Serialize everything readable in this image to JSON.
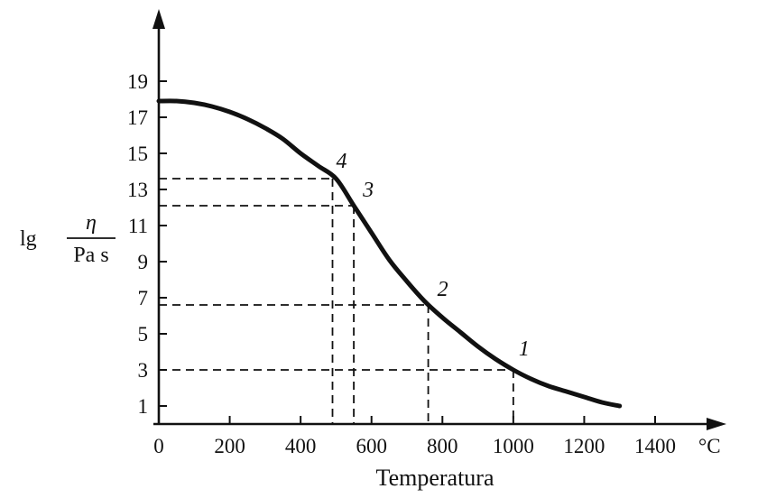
{
  "chart_data": {
    "type": "line",
    "title": "",
    "xlabel": "Temperatura",
    "x_unit": "°C",
    "ylabel": {
      "prefix": "lg",
      "numerator": "η",
      "denominator": "Pa s"
    },
    "xlim": [
      0,
      1400
    ],
    "ylim": [
      0,
      19
    ],
    "x_ticks": [
      0,
      200,
      400,
      600,
      800,
      1000,
      1200,
      1400
    ],
    "y_ticks": [
      1,
      3,
      5,
      7,
      9,
      11,
      13,
      15,
      17,
      19
    ],
    "grid": false,
    "series": [
      {
        "x": [
          0,
          50,
          100,
          150,
          200,
          250,
          300,
          350,
          400,
          450,
          500,
          550,
          600,
          650,
          700,
          750,
          800,
          850,
          900,
          950,
          1000,
          1050,
          1100,
          1150,
          1200,
          1250,
          1300
        ],
        "y": [
          17.9,
          17.9,
          17.8,
          17.6,
          17.3,
          16.9,
          16.4,
          15.8,
          15.0,
          14.3,
          13.6,
          12.1,
          10.6,
          9.1,
          7.9,
          6.8,
          5.9,
          5.1,
          4.3,
          3.6,
          3.0,
          2.5,
          2.1,
          1.8,
          1.5,
          1.2,
          1.0
        ]
      }
    ],
    "marked_points": [
      {
        "label": "1",
        "x": 1000,
        "y": 3.0
      },
      {
        "label": "2",
        "x": 760,
        "y": 6.6
      },
      {
        "label": "3",
        "x": 550,
        "y": 12.1
      },
      {
        "label": "4",
        "x": 490,
        "y": 13.6
      }
    ]
  }
}
